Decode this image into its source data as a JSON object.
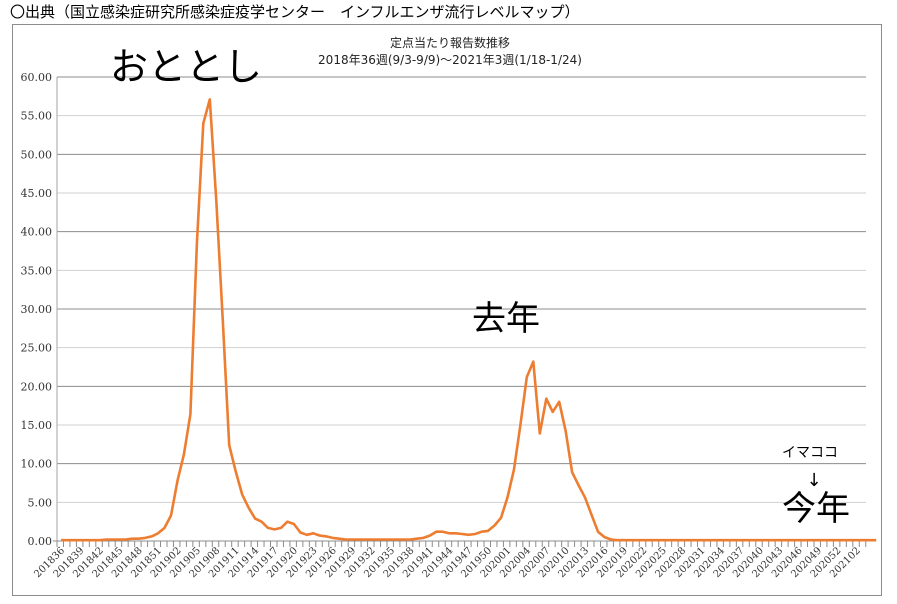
{
  "header": {
    "source_text": "〇出典（国立感染症研究所感染症疫学センター　インフルエンザ流行レベルマップ）"
  },
  "annotations": {
    "two_years_ago": "おととし",
    "last_year": "去年",
    "now_here": "イマココ",
    "arrow": "↓",
    "this_year": "今年"
  },
  "colors": {
    "line": "#ED7D31",
    "grid": "#8c8c8c",
    "grid_light": "#d0d0d0",
    "frame": "#8c8c8c"
  },
  "chart_data": {
    "type": "line",
    "title": "定点当たり報告数推移",
    "subtitle": "2018年36週(9/3-9/9)～2021年3週(1/18-1/24)",
    "xlabel": "",
    "ylabel": "",
    "ylim": [
      0,
      60
    ],
    "yticks": [
      "0.00",
      "5.00",
      "10.00",
      "15.00",
      "20.00",
      "25.00",
      "30.00",
      "35.00",
      "40.00",
      "45.00",
      "50.00",
      "55.00",
      "60.00"
    ],
    "grid": true,
    "legend": null,
    "x_tick_labels": [
      "201836",
      "201839",
      "201842",
      "201845",
      "201848",
      "201851",
      "201902",
      "201905",
      "201908",
      "201911",
      "201914",
      "201917",
      "201920",
      "201923",
      "201926",
      "201929",
      "201932",
      "201935",
      "201938",
      "201941",
      "201944",
      "201947",
      "201950",
      "202001",
      "202004",
      "202007",
      "202010",
      "202013",
      "202016",
      "202019",
      "202022",
      "202025",
      "202028",
      "202031",
      "202034",
      "202037",
      "202040",
      "202043",
      "202046",
      "202049",
      "202052",
      "202102"
    ],
    "series": [
      {
        "name": "定点当たり報告数",
        "x_start": "201836",
        "x_end": "202103",
        "values": [
          0.1,
          0.1,
          0.1,
          0.1,
          0.1,
          0.1,
          0.1,
          0.2,
          0.2,
          0.2,
          0.2,
          0.3,
          0.3,
          0.4,
          0.6,
          1.0,
          1.7,
          3.3,
          7.8,
          11.2,
          16.4,
          38.5,
          54.0,
          57.1,
          44.0,
          28.5,
          12.4,
          9.0,
          6.0,
          4.3,
          2.9,
          2.5,
          1.7,
          1.5,
          1.7,
          2.5,
          2.2,
          1.1,
          0.8,
          1.0,
          0.7,
          0.6,
          0.4,
          0.3,
          0.2,
          0.2,
          0.2,
          0.2,
          0.2,
          0.2,
          0.2,
          0.2,
          0.2,
          0.2,
          0.2,
          0.3,
          0.4,
          0.7,
          1.2,
          1.2,
          1.0,
          1.0,
          0.9,
          0.8,
          0.9,
          1.2,
          1.3,
          2.0,
          3.0,
          5.6,
          9.2,
          15.0,
          21.2,
          23.2,
          13.9,
          18.4,
          16.7,
          18.0,
          14.2,
          8.9,
          7.2,
          5.6,
          3.4,
          1.2,
          0.5,
          0.2,
          0.1,
          0.1,
          0.1,
          0.1,
          0.1,
          0.1,
          0.1,
          0.1,
          0.1,
          0.1,
          0.1,
          0.1,
          0.1,
          0.1,
          0.1,
          0.1,
          0.1,
          0.1,
          0.1,
          0.1,
          0.1,
          0.1,
          0.1,
          0.1,
          0.1,
          0.1,
          0.1,
          0.1,
          0.1,
          0.1,
          0.1,
          0.1,
          0.1,
          0.1,
          0.1,
          0.1,
          0.1,
          0.1,
          0.1,
          0.1,
          0.1
        ]
      }
    ]
  }
}
